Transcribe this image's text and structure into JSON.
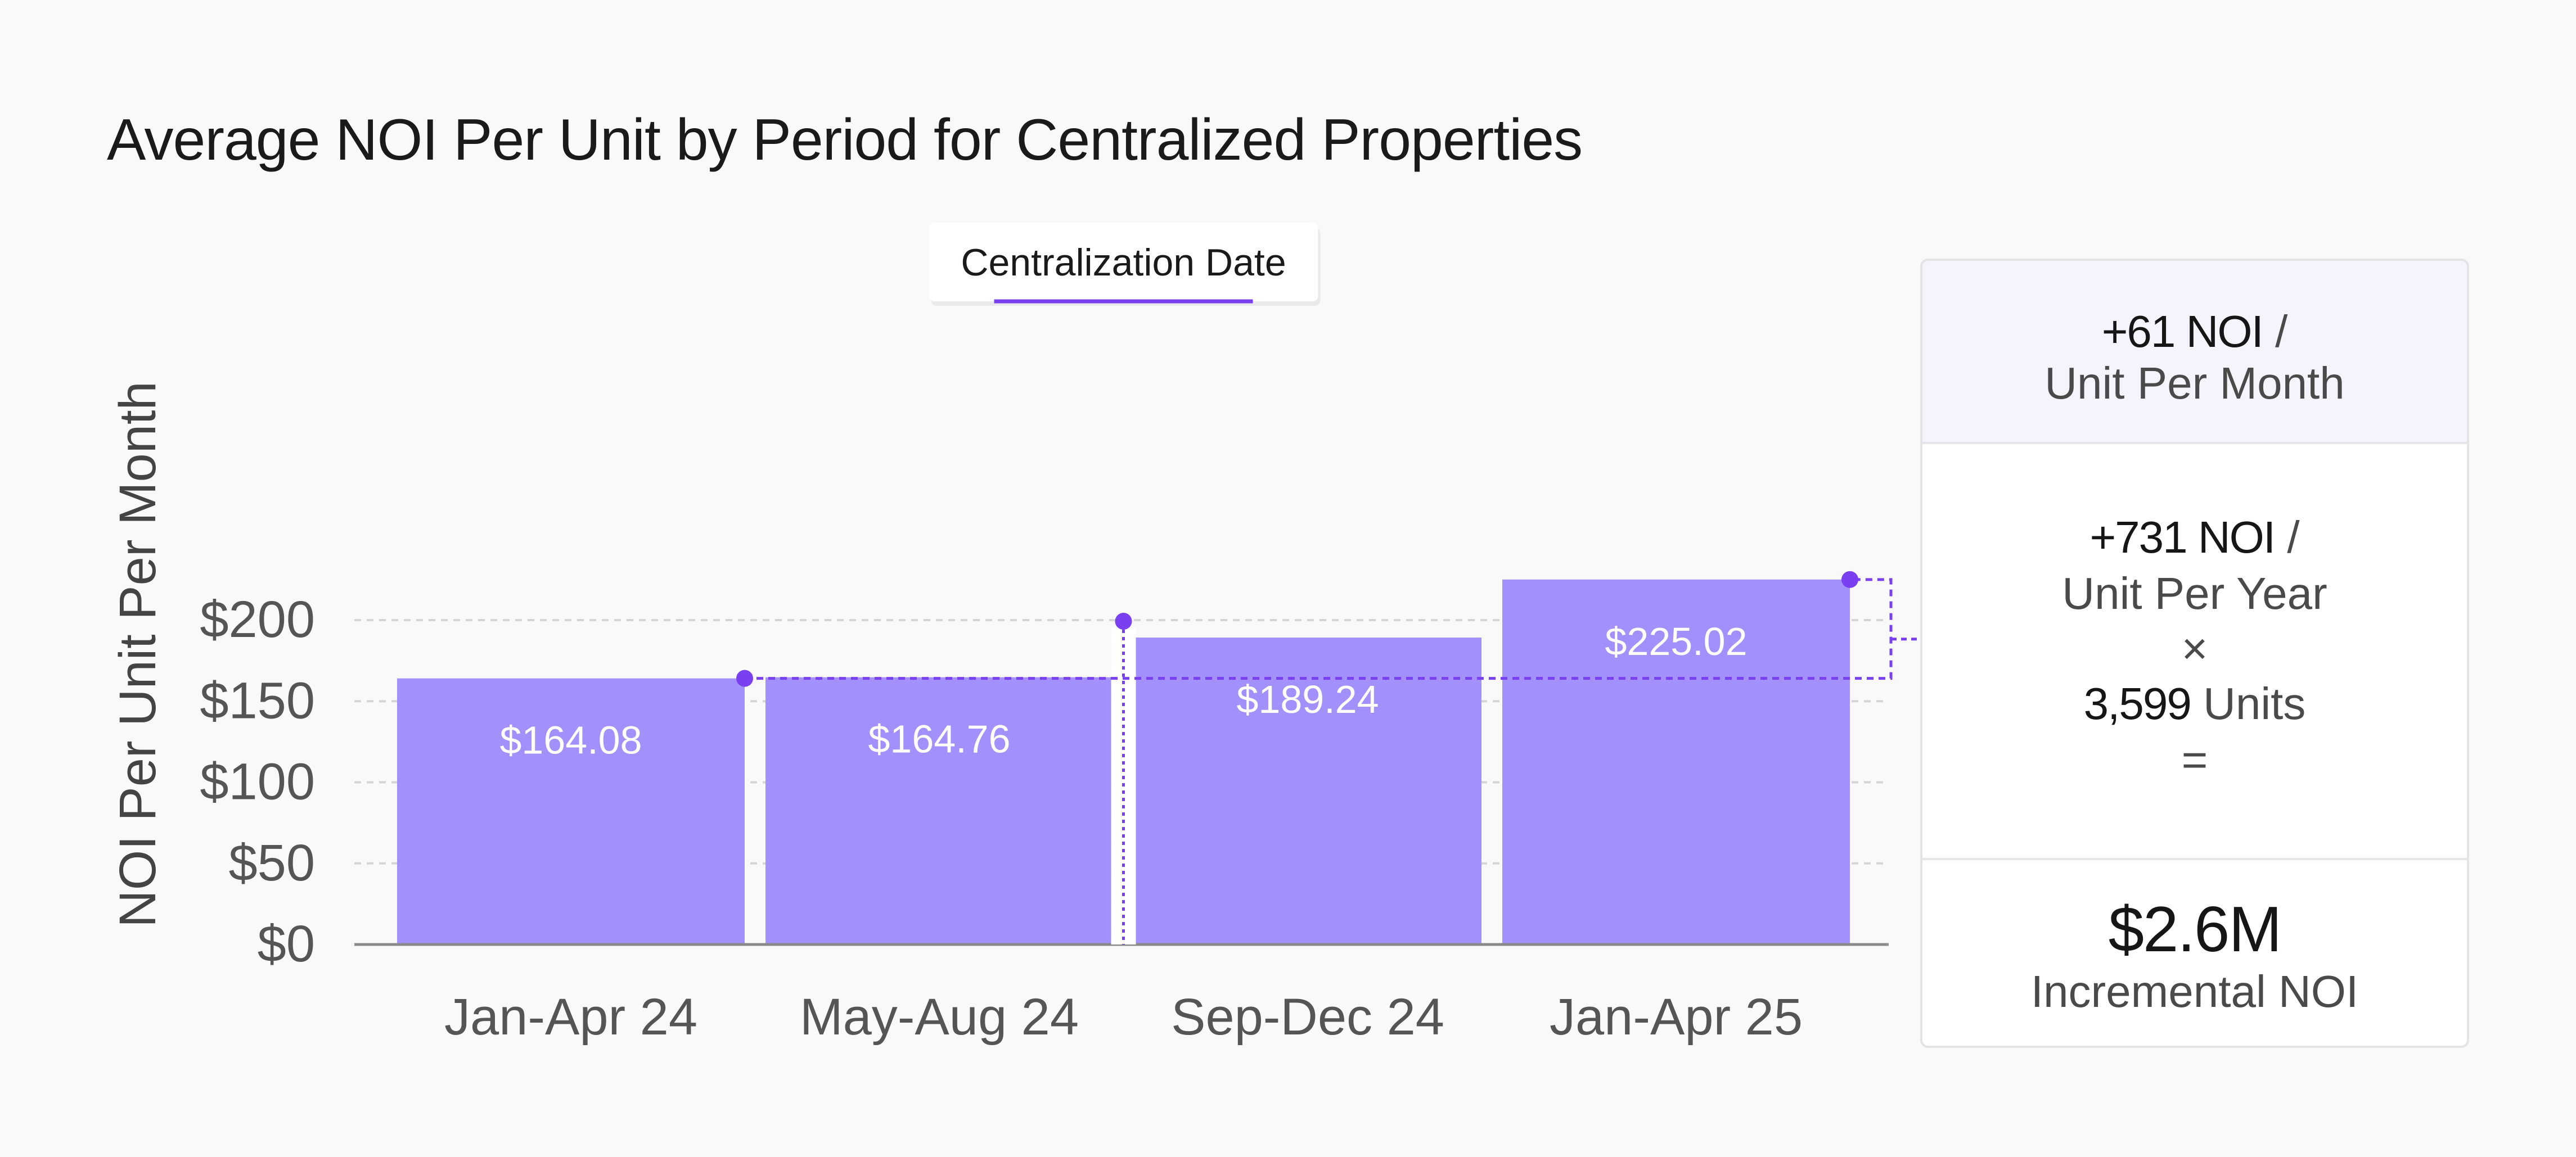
{
  "chart_data": {
    "type": "bar",
    "title": "Average NOI Per Unit by Period for Centralized Properties",
    "ylabel": "NOI Per Unit Per Month",
    "xlabel": "",
    "categories": [
      "Jan-Apr 24",
      "May-Aug 24",
      "Sep-Dec 24",
      "Jan-Apr 25"
    ],
    "values": [
      164.08,
      164.76,
      189.24,
      225.02
    ],
    "data_labels": [
      "$164.08",
      "$164.76",
      "$189.24",
      "$225.02"
    ],
    "ylim": [
      0,
      200
    ],
    "yticks": [
      0,
      50,
      100,
      150,
      200
    ],
    "ytick_labels": [
      "$0",
      "$50",
      "$100",
      "$150",
      "$200"
    ],
    "grid": true,
    "bar_color": "#a291fd",
    "annotation_color": "#7a3ff0",
    "annotation": "Centralization Date"
  },
  "callout": {
    "monthly_value": "+61 NOI",
    "monthly_slash": " /",
    "monthly_unit": "Unit Per Month",
    "yearly_value": "+731 NOI",
    "yearly_slash": " /",
    "yearly_unit": "Unit Per Year",
    "times": "×",
    "units_value": "3,599",
    "units_label": " Units",
    "equals": "=",
    "total": "$2.6M",
    "total_label": "Incremental NOI"
  }
}
